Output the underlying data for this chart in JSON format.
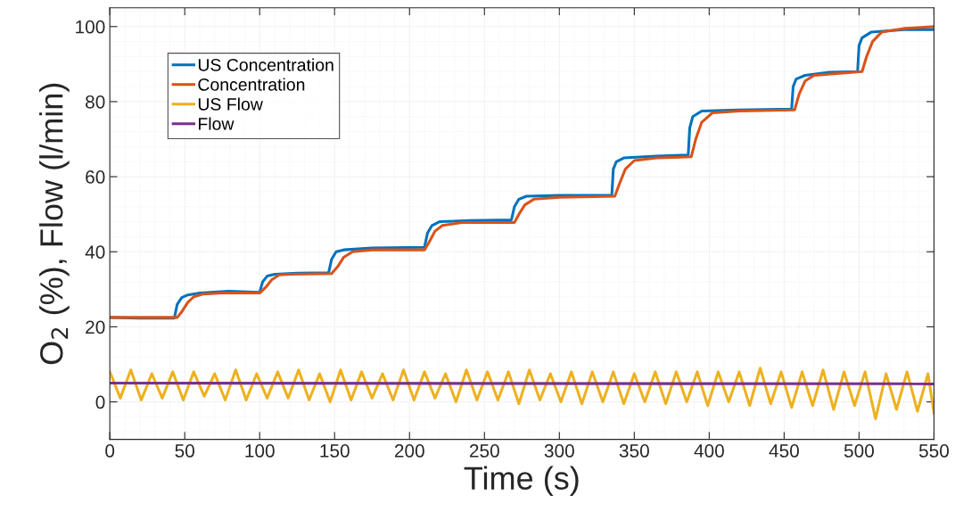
{
  "chart_data": {
    "type": "line",
    "xlabel": "Time (s)",
    "ylabel": "O$_{2}$ (%), Flow (l/min)",
    "xlim": [
      0,
      550
    ],
    "ylim": [
      -10,
      105
    ],
    "xticks": [
      0,
      50,
      100,
      150,
      200,
      250,
      300,
      350,
      400,
      450,
      500,
      550
    ],
    "yticks": [
      0,
      20,
      40,
      60,
      80,
      100
    ],
    "grid": true,
    "legend": "top left",
    "marker": "none",
    "line_style": "solid",
    "series": [
      {
        "name": "US Concentration",
        "color": "#0072bd",
        "x": [
          0,
          20,
          43,
          45,
          48,
          52,
          60,
          80,
          100,
          102,
          105,
          110,
          125,
          146,
          148,
          151,
          156,
          175,
          210,
          212,
          215,
          220,
          240,
          268,
          270,
          273,
          278,
          300,
          335,
          336,
          338,
          343,
          365,
          386,
          387,
          389,
          395,
          420,
          455,
          456,
          458,
          464,
          480,
          499,
          500,
          502,
          508,
          530,
          550
        ],
        "values": [
          22.5,
          22.3,
          22.3,
          26,
          27.8,
          28.5,
          29,
          29.5,
          29.2,
          32,
          33.5,
          34,
          34.3,
          34.4,
          38,
          40,
          40.5,
          41,
          41.2,
          45,
          47,
          48,
          48.3,
          48.5,
          52,
          54,
          54.8,
          55,
          55,
          62,
          64,
          65,
          65.5,
          65.8,
          73,
          76,
          77.5,
          77.8,
          78,
          84,
          86,
          87,
          87.8,
          88,
          95,
          97,
          98.5,
          99.2,
          99.2
        ]
      },
      {
        "name": "Concentration",
        "color": "#d95319",
        "x": [
          0,
          20,
          45,
          48,
          52,
          56,
          62,
          75,
          100,
          104,
          108,
          113,
          120,
          148,
          152,
          156,
          162,
          175,
          210,
          213,
          217,
          222,
          235,
          270,
          273,
          277,
          283,
          300,
          337,
          340,
          344,
          350,
          365,
          388,
          391,
          395,
          402,
          420,
          457,
          460,
          464,
          470,
          485,
          502,
          505,
          509,
          515,
          530,
          550
        ],
        "values": [
          22.5,
          22.5,
          22.5,
          24,
          26.5,
          28,
          28.7,
          29,
          29,
          30.5,
          32.5,
          33.8,
          34,
          34.2,
          36,
          38.5,
          40,
          40.5,
          40.5,
          42.5,
          45.5,
          47,
          47.8,
          47.8,
          50,
          52.5,
          54,
          54.5,
          54.8,
          58,
          62,
          64.3,
          65,
          65.3,
          70,
          74.5,
          77,
          77.5,
          77.8,
          82,
          85.5,
          87,
          87.5,
          88,
          92,
          96,
          98.5,
          99.5,
          100
        ]
      },
      {
        "name": "US Flow",
        "color": "#edb120",
        "x": [
          0,
          7,
          14,
          21,
          28,
          35,
          42,
          49,
          56,
          63,
          70,
          77,
          84,
          91,
          98,
          105,
          112,
          119,
          126,
          133,
          140,
          147,
          154,
          161,
          168,
          175,
          182,
          189,
          196,
          203,
          210,
          217,
          224,
          231,
          238,
          245,
          252,
          259,
          266,
          273,
          280,
          287,
          294,
          301,
          308,
          315,
          322,
          329,
          336,
          343,
          350,
          357,
          364,
          371,
          378,
          385,
          392,
          399,
          406,
          413,
          420,
          427,
          434,
          441,
          448,
          455,
          462,
          469,
          476,
          483,
          490,
          497,
          504,
          511,
          518,
          525,
          532,
          539,
          546,
          550
        ],
        "values": [
          8,
          1,
          8.5,
          0.5,
          7.5,
          1,
          8,
          0.5,
          8,
          1.5,
          7.5,
          0.5,
          8.5,
          0.5,
          7.5,
          1,
          8,
          1,
          8.5,
          0.5,
          7.5,
          0,
          8.5,
          0.5,
          8,
          1,
          7.5,
          0.5,
          8.5,
          0.5,
          8,
          1,
          7.5,
          0,
          8.5,
          0.5,
          8,
          0.5,
          8,
          -0.5,
          8.5,
          0.5,
          7.5,
          0,
          8,
          -0.5,
          8,
          0,
          8,
          -0.5,
          7.5,
          0,
          8,
          -0.5,
          8,
          0,
          8,
          -1,
          8,
          0,
          8,
          -1,
          9,
          -0.5,
          8,
          -1.5,
          8,
          -1,
          8.5,
          -2,
          8,
          -1,
          8,
          -4.5,
          7.5,
          -2,
          8,
          -2.5,
          7.5,
          -3
        ]
      },
      {
        "name": "Flow",
        "color": "#7e2f8e",
        "x": [
          0,
          550
        ],
        "values": [
          5,
          4.8
        ]
      }
    ]
  }
}
